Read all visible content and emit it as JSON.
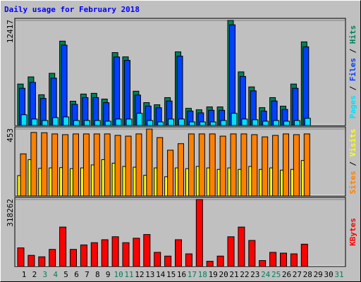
{
  "chart_data": {
    "type": "bar",
    "title": "Daily usage for February 2018",
    "categories": [
      "1",
      "2",
      "3",
      "4",
      "5",
      "6",
      "7",
      "8",
      "9",
      "10",
      "11",
      "12",
      "13",
      "14",
      "15",
      "16",
      "17",
      "18",
      "19",
      "20",
      "21",
      "22",
      "23",
      "24",
      "25",
      "26",
      "27",
      "28",
      "29",
      "30",
      "31"
    ],
    "category_colors": [
      "#000000",
      "#000000",
      "#00805c",
      "#00805c",
      "#000000",
      "#000000",
      "#000000",
      "#000000",
      "#000000",
      "#00805c",
      "#00805c",
      "#000000",
      "#000000",
      "#000000",
      "#000000",
      "#000000",
      "#00805c",
      "#00805c",
      "#000000",
      "#000000",
      "#000000",
      "#000000",
      "#000000",
      "#00805c",
      "#00805c",
      "#000000",
      "#000000",
      "#000000",
      "#000000",
      "#000000",
      "#00805c"
    ],
    "separator": " / ",
    "panels": [
      {
        "ylim": [
          0,
          12417
        ],
        "yticks": [
          12417
        ],
        "series": [
          {
            "name": "Pages",
            "color": "#00e0ff",
            "values": [
              1270,
              760,
              590,
              930,
              1010,
              590,
              590,
              590,
              510,
              760,
              760,
              1440,
              590,
              420,
              760,
              760,
              420,
              420,
              420,
              590,
              1440,
              760,
              680,
              510,
              590,
              510,
              590,
              850,
              null,
              null,
              null
            ]
          },
          {
            "name": "Files",
            "color": "#0040ff",
            "values": [
              4400,
              5100,
              3200,
              5600,
              9500,
              2500,
              3300,
              3300,
              2700,
              8100,
              7700,
              3600,
              2300,
              2100,
              2900,
              8200,
              1700,
              1500,
              1800,
              1800,
              11900,
              5800,
              4100,
              1700,
              2900,
              1900,
              4400,
              9300,
              null,
              null,
              null
            ]
          },
          {
            "name": "Hits",
            "color": "#00805c",
            "values": [
              4901,
              5746,
              3634,
              6169,
              9971,
              2873,
              3718,
              3803,
              3127,
              8619,
              8112,
              4056,
              2704,
              2451,
              3296,
              8704,
              2028,
              1859,
              2197,
              2197,
              12417,
              6338,
              4563,
              2113,
              3296,
              2282,
              4901,
              9887,
              null,
              null,
              null
            ]
          }
        ]
      },
      {
        "ylim": [
          0,
          453
        ],
        "yticks": [
          453
        ],
        "series": [
          {
            "name": "Sites",
            "color": "#ff8000",
            "values": [
              285,
              430,
              428,
              420,
              415,
              420,
              420,
              420,
              420,
              410,
              405,
              420,
              453,
              395,
              310,
              354,
              420,
              420,
              420,
              405,
              420,
              420,
              415,
              400,
              410,
              420,
              415,
              420,
              null,
              null,
              null
            ]
          },
          {
            "name": "Visits",
            "color": "#ffff00",
            "values": [
              138,
              246,
              187,
              190,
              192,
              185,
              190,
              210,
              246,
              222,
              200,
              195,
              140,
              190,
              130,
              190,
              185,
              200,
              190,
              180,
              190,
              180,
              200,
              180,
              190,
              175,
              180,
              240,
              null,
              null,
              null
            ]
          }
        ]
      },
      {
        "ylim": [
          0,
          318262
        ],
        "yticks": [
          318262
        ],
        "series": [
          {
            "name": "KBytes",
            "color": "#ff0000",
            "values": [
              88400,
              53000,
              46000,
              81300,
              187400,
              81300,
              102500,
              113200,
              127300,
              141400,
              113200,
              134400,
              152000,
              67200,
              49500,
              127300,
              60100,
              318262,
              24800,
              49500,
              141400,
              187400,
              123800,
              28300,
              67200,
              63600,
              60100,
              106100,
              null,
              null,
              null
            ]
          }
        ]
      }
    ]
  }
}
